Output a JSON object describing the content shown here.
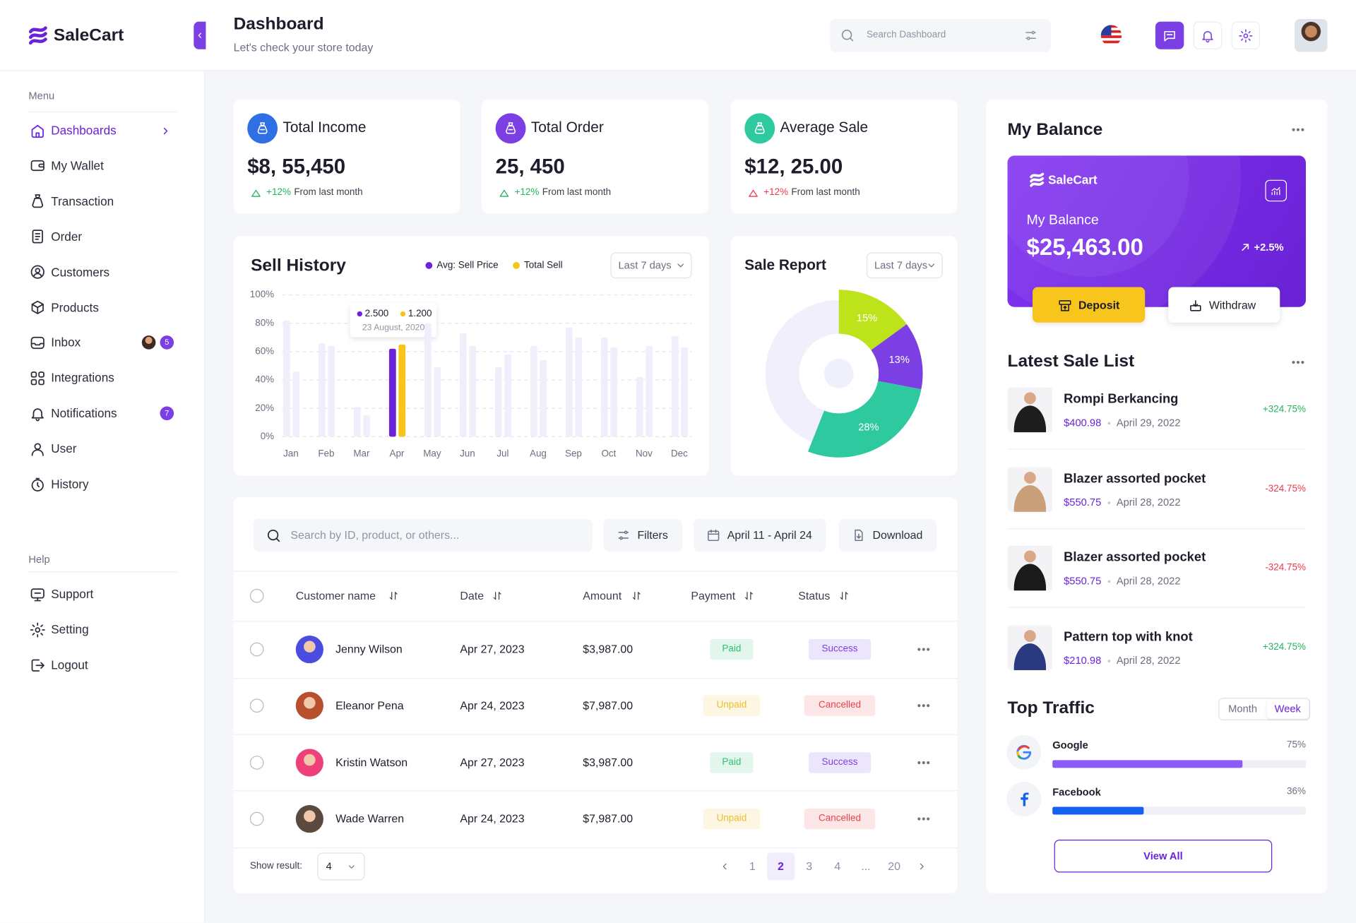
{
  "brand": "SaleCart",
  "header": {
    "title": "Dashboard",
    "subtitle": "Let's check your store today",
    "search": "Search Dashboard"
  },
  "sidebar": {
    "menu_label": "Menu",
    "menu": [
      {
        "label": "Dashboards"
      },
      {
        "label": "My Wallet"
      },
      {
        "label": "Transaction"
      },
      {
        "label": "Order"
      },
      {
        "label": "Customers"
      },
      {
        "label": "Products"
      },
      {
        "label": "Inbox",
        "badge": 5
      },
      {
        "label": "Integrations"
      },
      {
        "label": "Notifications",
        "badge": 7
      },
      {
        "label": "User"
      },
      {
        "label": "History"
      }
    ],
    "help_label": "Help",
    "help": [
      {
        "label": "Support"
      },
      {
        "label": "Setting"
      },
      {
        "label": "Logout"
      }
    ]
  },
  "stats": [
    {
      "title": "Total Income",
      "value": "$8, 55,450",
      "change": "+12%",
      "note": "From last month",
      "icon_color": "#2f6fe4",
      "change_color": "#22b35e"
    },
    {
      "title": "Total Order",
      "value": "25, 450",
      "change": "+12%",
      "note": "From last month",
      "icon_color": "#7b3fe4",
      "change_color": "#22b35e"
    },
    {
      "title": "Average Sale",
      "value": "$12, 25.00",
      "change": "+12%",
      "note": "From last month",
      "icon_color": "#2ec99e",
      "change_color": "#f0384a"
    }
  ],
  "chart_data": [
    {
      "type": "bar",
      "title": "Sell History",
      "dropdown": "Last 7 days",
      "categories": [
        "Jan",
        "Feb",
        "Mar",
        "Apr",
        "May",
        "Jun",
        "Jul",
        "Aug",
        "Sep",
        "Oct",
        "Nov",
        "Dec"
      ],
      "series": [
        {
          "name": "Avg: Sell Price",
          "color": "#6a23d9",
          "values": [
            82,
            66,
            21,
            62,
            80,
            73,
            49,
            64,
            77,
            70,
            42,
            71
          ]
        },
        {
          "name": "Total Sell",
          "color": "#f5c518",
          "values": [
            46,
            64,
            15,
            65,
            49,
            64,
            58,
            54,
            70,
            63,
            64,
            63
          ]
        }
      ],
      "ylim": [
        0,
        100
      ],
      "yticks": [
        {
          "value": 0,
          "label": "0%"
        },
        {
          "value": 20,
          "label": "20%"
        },
        {
          "value": 40,
          "label": "40%"
        },
        {
          "value": 60,
          "label": "60%"
        },
        {
          "value": 80,
          "label": "80%"
        },
        {
          "value": 100,
          "label": "100%"
        }
      ],
      "grid": true,
      "muted_color": "#f1eefb",
      "highlight": "Apr",
      "tooltip": {
        "labels": [
          "2.500",
          "1.200"
        ],
        "date": "23 August, 2020"
      }
    },
    {
      "type": "pie",
      "title": "Sale Report",
      "dropdown": "Last 7 days",
      "values": [
        15,
        13,
        28
      ],
      "value_labels": [
        "15%",
        "13%",
        "28%"
      ],
      "colors": [
        "#bde31b",
        "#7b3fe4",
        "#2ec99e"
      ]
    }
  ],
  "table": {
    "search": "Search by ID, product, or others...",
    "filters": "Filters",
    "date_range": "April 11 - April 24",
    "download": "Download",
    "columns": [
      "Customer name",
      "Date",
      "Amount",
      "Payment",
      "Status"
    ],
    "rows": [
      {
        "name": "Jenny Wilson",
        "date": "Apr 27, 2023",
        "amount": "$3,987.00",
        "payment": "Paid",
        "payment_color": "#2fbf71",
        "status": "Success",
        "status_color": "#7b3fe4"
      },
      {
        "name": "Eleanor Pena",
        "date": "Apr 24, 2023",
        "amount": "$7,987.00",
        "payment": "Unpaid",
        "payment_color": "#eebd2b",
        "status": "Cancelled",
        "status_color": "#e8434b"
      },
      {
        "name": "Kristin Watson",
        "date": "Apr 27, 2023",
        "amount": "$3,987.00",
        "payment": "Paid",
        "payment_color": "#2fbf71",
        "status": "Success",
        "status_color": "#7b3fe4"
      },
      {
        "name": "Wade Warren",
        "date": "Apr 24, 2023",
        "amount": "$7,987.00",
        "payment": "Unpaid",
        "payment_color": "#eebd2b",
        "status": "Cancelled",
        "status_color": "#e8434b"
      }
    ],
    "show_result_label": "Show result:",
    "page_size": 4,
    "pages": [
      "1",
      "2",
      "3",
      "4",
      "...",
      "20"
    ],
    "current_page_index": 1
  },
  "balance": {
    "title": "My Balance",
    "card_brand": "SaleCart",
    "card_label": "My Balance",
    "amount": "$25,463.00",
    "change": "+2.5%",
    "deposit": "Deposit",
    "withdraw": "Withdraw"
  },
  "latest_sales": {
    "title": "Latest Sale List",
    "items": [
      {
        "name": "Rompi Berkancing",
        "price": "$400.98",
        "date": "April 29, 2022",
        "change": "+324.75%",
        "color": "#22b35e"
      },
      {
        "name": "Blazer assorted pocket",
        "price": "$550.75",
        "date": "April 28, 2022",
        "change": "-324.75%",
        "color": "#f0384a"
      },
      {
        "name": "Blazer assorted pocket",
        "price": "$550.75",
        "date": "April 28, 2022",
        "change": "-324.75%",
        "color": "#f0384a"
      },
      {
        "name": "Pattern top with knot",
        "price": "$210.98",
        "date": "April 28, 2022",
        "change": "+324.75%",
        "color": "#22b35e"
      }
    ]
  },
  "traffic": {
    "title": "Top Traffic",
    "tabs": [
      "Month",
      "Week"
    ],
    "active_tab": 1,
    "items": [
      {
        "name": "Google",
        "value": 75,
        "label": "75%",
        "color": "#8b5cf6"
      },
      {
        "name": "Facebook",
        "value": 36,
        "label": "36%",
        "color": "#1560f0"
      }
    ],
    "button": "View All"
  }
}
